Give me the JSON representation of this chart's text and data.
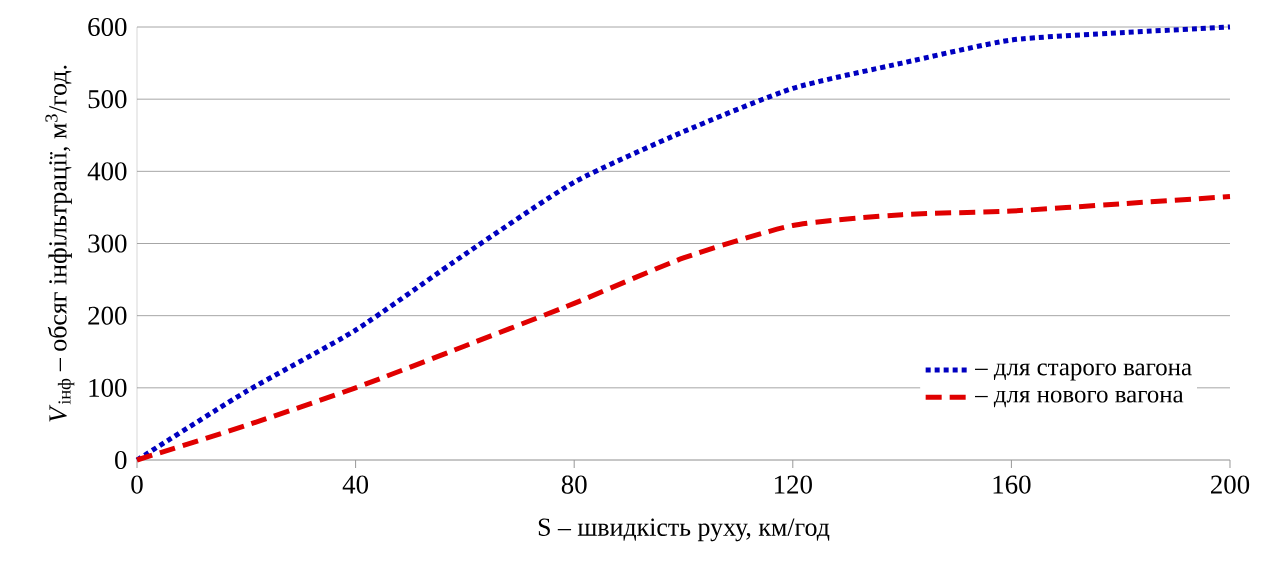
{
  "chart_data": {
    "type": "line",
    "xlabel": "S – швидкість руху, км/год",
    "ylabel": "*V*$_{інф}$ – обсяг інфільтрації, м$^{3}$/год.",
    "x": [
      0,
      20,
      40,
      60,
      80,
      100,
      120,
      140,
      160,
      180,
      200
    ],
    "series": [
      {
        "name": "– для старого вагона",
        "color": "#0000c0",
        "line_style": "dotted",
        "values": [
          0,
          95,
          180,
          285,
          385,
          455,
          515,
          550,
          582,
          592,
          600
        ]
      },
      {
        "name": "– для нового вагона",
        "color": "#e00000",
        "line_style": "dashed",
        "values": [
          0,
          48,
          100,
          158,
          217,
          280,
          325,
          340,
          345,
          355,
          365
        ]
      }
    ],
    "xlim": [
      0,
      200
    ],
    "xticks": [
      0,
      40,
      80,
      120,
      160,
      200
    ],
    "ylim": [
      0,
      600
    ],
    "yticks": [
      0,
      100,
      200,
      300,
      400,
      500,
      600
    ],
    "grid": "y",
    "legend": "bottom right"
  }
}
